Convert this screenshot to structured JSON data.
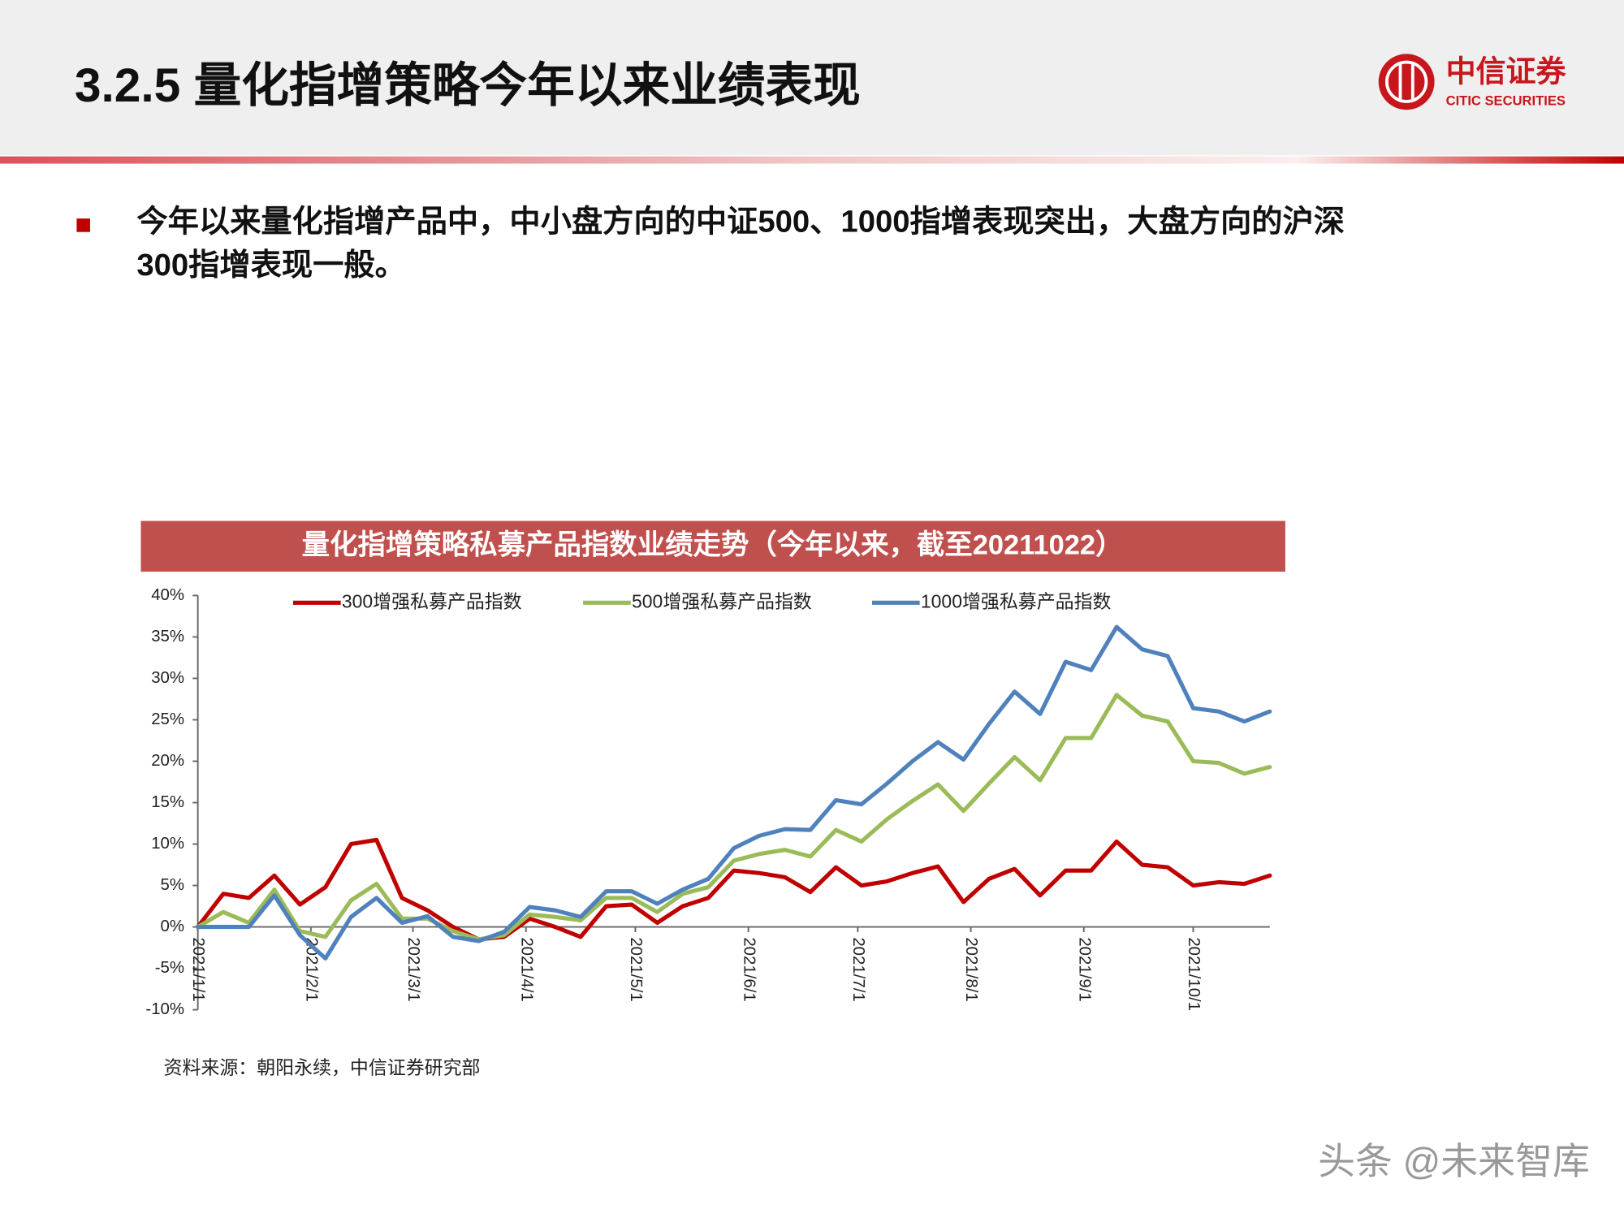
{
  "header": {
    "title": "3.2.5 量化指增策略今年以来业绩表现",
    "logo_cn": "中信证券",
    "logo_en": "CITIC SECURITIES"
  },
  "bullet": {
    "lines": [
      "今年以来量化指增产品中，中小盘方向的中证500、1000指增表现突出，大盘方向的沪深",
      "300指增表现一般。"
    ]
  },
  "source": "资料来源：朝阳永续，中信证券研究部",
  "watermark": "头条 @未来智库",
  "chart_data": {
    "type": "line",
    "title": "量化指增策略私募产品指数业绩走势（今年以来，截至20211022）",
    "x": [
      "2021/1/1",
      "2021/1/8",
      "2021/1/15",
      "2021/1/22",
      "2021/1/29",
      "2021/2/5",
      "2021/2/12",
      "2021/2/19",
      "2021/2/26",
      "2021/3/5",
      "2021/3/12",
      "2021/3/19",
      "2021/3/26",
      "2021/4/2",
      "2021/4/9",
      "2021/4/16",
      "2021/4/23",
      "2021/4/30",
      "2021/5/7",
      "2021/5/14",
      "2021/5/21",
      "2021/5/28",
      "2021/6/4",
      "2021/6/11",
      "2021/6/18",
      "2021/6/25",
      "2021/7/2",
      "2021/7/9",
      "2021/7/16",
      "2021/7/23",
      "2021/7/30",
      "2021/8/6",
      "2021/8/13",
      "2021/8/20",
      "2021/8/27",
      "2021/9/3",
      "2021/9/10",
      "2021/9/17",
      "2021/9/24",
      "2021/10/1",
      "2021/10/8",
      "2021/10/15",
      "2021/10/22"
    ],
    "xlim": [
      "2021/1/1",
      "2021/10/22"
    ],
    "xticks": [
      "2021/1/1",
      "2021/2/1",
      "2021/3/1",
      "2021/4/1",
      "2021/5/1",
      "2021/6/1",
      "2021/7/1",
      "2021/8/1",
      "2021/9/1",
      "2021/10/1"
    ],
    "ylim": [
      -10,
      40
    ],
    "yticks": [
      {
        "value": -10,
        "label": "-10%"
      },
      {
        "value": -5,
        "label": "-5%"
      },
      {
        "value": 0,
        "label": "0%"
      },
      {
        "value": 5,
        "label": "5%"
      },
      {
        "value": 10,
        "label": "10%"
      },
      {
        "value": 15,
        "label": "15%"
      },
      {
        "value": 20,
        "label": "20%"
      },
      {
        "value": 25,
        "label": "25%"
      },
      {
        "value": 30,
        "label": "30%"
      },
      {
        "value": 35,
        "label": "35%"
      },
      {
        "value": 40,
        "label": "40%"
      }
    ],
    "series": [
      {
        "name": "300增强私募产品指数",
        "color": "#c00000",
        "values": [
          0,
          4,
          3.5,
          6.2,
          2.7,
          4.8,
          10,
          10.5,
          3.5,
          2,
          0,
          -1.5,
          -1.2,
          1,
          0,
          -1.2,
          2.5,
          2.7,
          0.5,
          2.5,
          3.5,
          6.8,
          6.5,
          6,
          4.2,
          7.2,
          5,
          5.5,
          6.5,
          7.3,
          3,
          5.8,
          7,
          3.8,
          6.8,
          6.8,
          10.3,
          7.5,
          7.2,
          5,
          5.4,
          5.2,
          6.2
        ]
      },
      {
        "name": "500增强私募产品指数",
        "color": "#9bbb59",
        "values": [
          0,
          1.8,
          0.5,
          4.5,
          -0.5,
          -1.2,
          3.2,
          5.2,
          1,
          1,
          -0.5,
          -1.5,
          -1,
          1.5,
          1.2,
          0.8,
          3.5,
          3.5,
          1.8,
          4,
          4.8,
          8,
          8.8,
          9.3,
          8.5,
          11.7,
          10.3,
          13,
          15.2,
          17.2,
          14,
          17.3,
          20.5,
          17.7,
          22.8,
          22.8,
          28,
          25.5,
          24.8,
          20,
          19.8,
          18.5,
          19.3
        ]
      },
      {
        "name": "1000增强私募产品指数",
        "color": "#4f81bd",
        "values": [
          0,
          0,
          0,
          3.8,
          -1,
          -3.8,
          1.2,
          3.5,
          0.5,
          1.3,
          -1.2,
          -1.7,
          -0.6,
          2.4,
          2,
          1.2,
          4.3,
          4.3,
          2.8,
          4.5,
          5.8,
          9.5,
          11,
          11.8,
          11.7,
          15.3,
          14.8,
          17.3,
          20,
          22.3,
          20.2,
          24.5,
          28.4,
          25.7,
          32,
          31,
          36.2,
          33.5,
          32.7,
          26.4,
          26,
          24.8,
          26
        ]
      }
    ]
  }
}
